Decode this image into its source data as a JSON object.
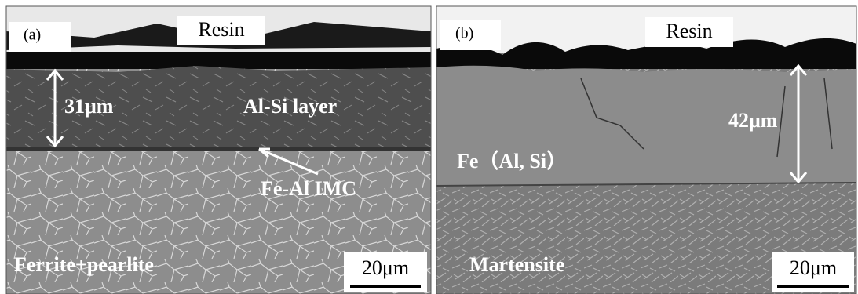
{
  "panels": [
    {
      "label": "(a)",
      "resin": "Resin",
      "thickness": "31μm",
      "layer": "Al-Si layer",
      "interface": "Fe-Al IMC",
      "substrate": "Ferrite+pearlite",
      "scale_bar": "20μm"
    },
    {
      "label": "(b)",
      "resin": "Resin",
      "thickness": "42μm",
      "layer": "Fe（Al, Si）",
      "substrate": "Martensite",
      "scale_bar": "20μm"
    }
  ]
}
